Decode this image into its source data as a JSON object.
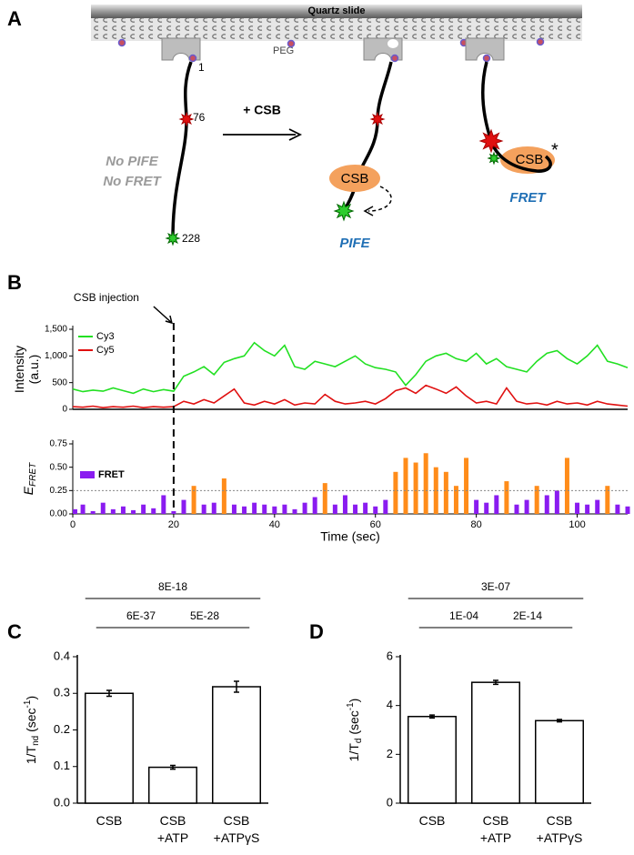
{
  "panel_labels": [
    "A",
    "B",
    "C",
    "D"
  ],
  "diagram": {
    "slide": "Quartz slide",
    "peg": "PEG",
    "positions": [
      "1",
      "76",
      "228"
    ],
    "step": "+ CSB",
    "state1": [
      "No PIFE",
      "No FRET"
    ],
    "protein": [
      "CSB",
      "CSB"
    ],
    "star": "*",
    "state2": "PIFE",
    "state3": "FRET"
  },
  "chart_data": [
    {
      "type": "line",
      "ylabel": [
        "Intensity",
        "(a.u.)"
      ],
      "annotation_text": "CSB injection",
      "event_x": 20,
      "xlim": [
        0,
        110
      ],
      "ylim": [
        0,
        1500
      ],
      "yticks": [
        0,
        500,
        {
          "value": 1000,
          "label": "1,000"
        },
        {
          "value": 1500,
          "label": "1,500"
        }
      ],
      "x": [
        0,
        2,
        4,
        6,
        8,
        10,
        12,
        14,
        16,
        18,
        20,
        22,
        24,
        26,
        28,
        30,
        32,
        34,
        36,
        38,
        40,
        42,
        44,
        46,
        48,
        50,
        52,
        54,
        56,
        58,
        60,
        62,
        64,
        66,
        68,
        70,
        72,
        74,
        76,
        78,
        80,
        82,
        84,
        86,
        88,
        90,
        92,
        94,
        96,
        98,
        100,
        102,
        104,
        106,
        108,
        110
      ],
      "series": [
        {
          "name": "Cy3",
          "color": "#22e022",
          "values": [
            380,
            330,
            360,
            340,
            400,
            350,
            300,
            380,
            330,
            370,
            340,
            620,
            700,
            800,
            650,
            880,
            950,
            1000,
            1250,
            1100,
            1000,
            1200,
            800,
            750,
            900,
            850,
            800,
            900,
            1000,
            850,
            780,
            750,
            700,
            450,
            650,
            900,
            1000,
            1050,
            950,
            900,
            1050,
            850,
            950,
            800,
            750,
            700,
            900,
            1050,
            1100,
            950,
            850,
            1000,
            1200,
            900,
            850,
            780
          ]
        },
        {
          "name": "Cy5",
          "color": "#e01010",
          "values": [
            50,
            40,
            60,
            30,
            50,
            40,
            60,
            30,
            50,
            40,
            50,
            150,
            100,
            180,
            120,
            250,
            380,
            120,
            80,
            150,
            100,
            180,
            80,
            120,
            100,
            280,
            150,
            100,
            120,
            150,
            100,
            200,
            350,
            400,
            300,
            450,
            380,
            300,
            420,
            250,
            120,
            150,
            100,
            400,
            150,
            100,
            120,
            80,
            150,
            100,
            120,
            80,
            150,
            100,
            80,
            60
          ]
        }
      ]
    },
    {
      "type": "bar",
      "ylabel": "E",
      "ylabel_sub": "FRET",
      "xlabel": "Time (sec)",
      "xlim": [
        0,
        110
      ],
      "xticks": [
        0,
        20,
        40,
        60,
        80,
        100
      ],
      "ylim": [
        0,
        0.75
      ],
      "yticks": [
        {
          "value": 0,
          "label": "0.00"
        },
        {
          "value": 0.25,
          "label": "0.25"
        },
        {
          "value": 0.5,
          "label": "0.50"
        },
        {
          "value": 0.75,
          "label": "0.75"
        }
      ],
      "threshold": 0.25,
      "highlight_color": "#ff8c1a",
      "x": [
        0,
        2,
        4,
        6,
        8,
        10,
        12,
        14,
        16,
        18,
        20,
        22,
        24,
        26,
        28,
        30,
        32,
        34,
        36,
        38,
        40,
        42,
        44,
        46,
        48,
        50,
        52,
        54,
        56,
        58,
        60,
        62,
        64,
        66,
        68,
        70,
        72,
        74,
        76,
        78,
        80,
        82,
        84,
        86,
        88,
        90,
        92,
        94,
        96,
        98,
        100,
        102,
        104,
        106,
        108,
        110
      ],
      "series": [
        {
          "name": "FRET",
          "color": "#8a1cf0",
          "values": [
            0.05,
            0.1,
            0.03,
            0.12,
            0.05,
            0.08,
            0.04,
            0.1,
            0.06,
            0.2,
            0.03,
            0.15,
            0.3,
            0.1,
            0.12,
            0.38,
            0.1,
            0.08,
            0.12,
            0.1,
            0.08,
            0.1,
            0.05,
            0.12,
            0.18,
            0.33,
            0.1,
            0.2,
            0.1,
            0.12,
            0.08,
            0.15,
            0.45,
            0.6,
            0.55,
            0.65,
            0.5,
            0.45,
            0.3,
            0.6,
            0.15,
            0.12,
            0.2,
            0.35,
            0.1,
            0.15,
            0.3,
            0.2,
            0.25,
            0.6,
            0.12,
            0.1,
            0.15,
            0.3,
            0.1,
            0.08
          ]
        }
      ]
    },
    {
      "type": "bar",
      "ylabel": "1/T",
      "ylabel_sub": "nd",
      "ylabel_unit": " (sec",
      "ylabel_sup": "-1",
      "ylabel_end": ")",
      "categories": [
        "CSB",
        "CSB +ATP",
        "CSB +ATPγS"
      ],
      "values": [
        0.3,
        0.098,
        0.318
      ],
      "errors": [
        0.008,
        0.005,
        0.015
      ],
      "color": "#ffffff",
      "ylim": [
        0,
        0.4
      ],
      "yticks": [
        {
          "value": 0,
          "label": "0.0"
        },
        0.1,
        0.2,
        0.3,
        0.4
      ],
      "comparisons": [
        {
          "from": 0,
          "to": 1,
          "label": "6E-37"
        },
        {
          "from": 1,
          "to": 2,
          "label": "5E-28"
        },
        {
          "from": 0,
          "to": 2,
          "label": "8E-18"
        }
      ]
    },
    {
      "type": "bar",
      "ylabel": "1/T",
      "ylabel_sub": "d",
      "ylabel_unit": " (sec",
      "ylabel_sup": "-1",
      "ylabel_end": ")",
      "categories": [
        "CSB",
        "CSB +ATP",
        "CSB +ATPγS"
      ],
      "values": [
        3.55,
        4.95,
        3.38
      ],
      "errors": [
        0.06,
        0.08,
        0.05
      ],
      "color": "#ffffff",
      "ylim": [
        0,
        6
      ],
      "yticks": [
        0,
        2,
        4,
        6
      ],
      "comparisons": [
        {
          "from": 0,
          "to": 1,
          "label": "1E-04"
        },
        {
          "from": 1,
          "to": 2,
          "label": "2E-14"
        },
        {
          "from": 0,
          "to": 2,
          "label": "3E-07"
        }
      ]
    }
  ]
}
